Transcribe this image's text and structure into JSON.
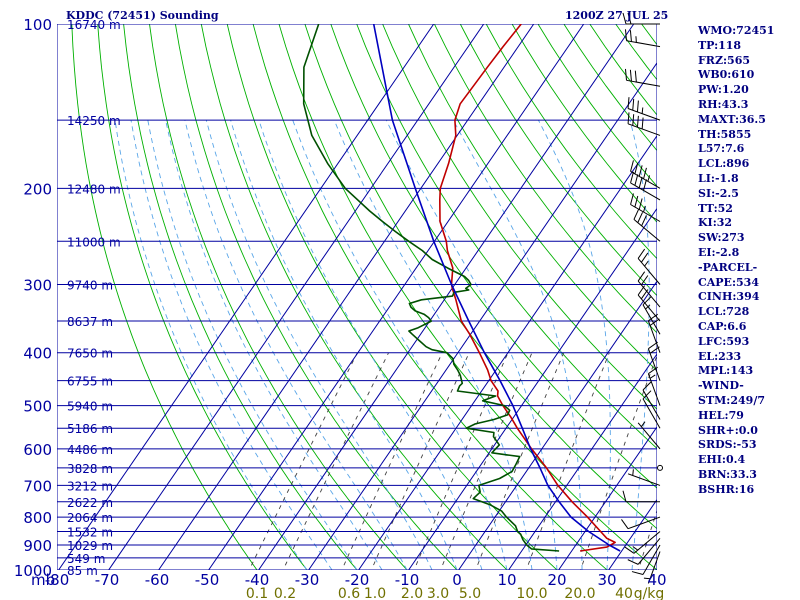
{
  "title_left": "KDDC (72451) Sounding",
  "title_right": "1200Z 27 JUL 25",
  "colors": {
    "background": "#ffffff",
    "grid": "#0000a0",
    "dry_adiabat": "#00b000",
    "moist_adiabat": "#5aa6e8",
    "mixing_ratio": "#404040",
    "temperature": "#c00000",
    "dewpoint": "#005000",
    "parcel": "#0000c0",
    "wind": "#000000",
    "text": "#000080",
    "mixing_label": "#707000"
  },
  "chart_data": {
    "type": "skew-t",
    "title": "KDDC (72451) Sounding",
    "subtitle": "1200Z 27 JUL 25",
    "pressure_axis": {
      "unit": "mb",
      "ticks": [
        100,
        200,
        300,
        400,
        500,
        600,
        700,
        800,
        900,
        1000
      ],
      "range": [
        1000,
        100
      ],
      "scale": "log"
    },
    "temperature_axis": {
      "ticks": [
        -80,
        -70,
        -60,
        -50,
        -40,
        -30,
        -20,
        -10,
        0,
        10,
        20,
        30,
        40
      ],
      "range": [
        -80,
        40
      ]
    },
    "height_labels": [
      {
        "p": 100,
        "label": "16740 m"
      },
      {
        "p": 150,
        "label": "14250 m"
      },
      {
        "p": 200,
        "label": "12480 m"
      },
      {
        "p": 250,
        "label": "11000 m"
      },
      {
        "p": 300,
        "label": "9740 m"
      },
      {
        "p": 350,
        "label": "8637 m"
      },
      {
        "p": 400,
        "label": "7650 m"
      },
      {
        "p": 450,
        "label": "6755 m"
      },
      {
        "p": 500,
        "label": "5940 m"
      },
      {
        "p": 550,
        "label": "5186 m"
      },
      {
        "p": 600,
        "label": "4486 m"
      },
      {
        "p": 650,
        "label": "3828 m"
      },
      {
        "p": 700,
        "label": "3212 m"
      },
      {
        "p": 750,
        "label": "2622 m"
      },
      {
        "p": 800,
        "label": "2064 m"
      },
      {
        "p": 850,
        "label": "1532 m"
      },
      {
        "p": 900,
        "label": "1029 m"
      },
      {
        "p": 950,
        "label": "549 m"
      },
      {
        "p": 1000,
        "label": "85 m"
      }
    ],
    "mixing_ratio_labels": [
      "0.1",
      "0.2",
      "0.6",
      "1.0",
      "2.0",
      "3.0",
      "5.0",
      "10.0",
      "20.0",
      "40",
      "g/kg"
    ],
    "mixing_ratio_values": [
      0.1,
      0.2,
      0.6,
      1.0,
      2.0,
      3.0,
      5.0,
      10.0,
      20.0,
      40
    ],
    "series": [
      {
        "name": "temperature",
        "p": [
          923,
          908,
          890,
          875,
          850,
          800,
          750,
          700,
          650,
          600,
          550,
          525,
          500,
          480,
          470,
          450,
          430,
          400,
          370,
          350,
          320,
          305,
          300,
          280,
          260,
          250,
          230,
          210,
          200,
          180,
          160,
          150,
          140,
          130,
          120,
          110,
          100
        ],
        "t": [
          22.0,
          26.8,
          27.8,
          25.6,
          23.4,
          18.8,
          13.6,
          8.5,
          3.8,
          -1.8,
          -7.5,
          -10.3,
          -13.5,
          -15.9,
          -16.5,
          -19.3,
          -21.5,
          -25.5,
          -30.0,
          -33.5,
          -37.5,
          -39.8,
          -40.5,
          -42.5,
          -46.0,
          -47.5,
          -51.5,
          -54.5,
          -56.0,
          -57.8,
          -60.2,
          -62.5,
          -63.7,
          -63.5,
          -63.3,
          -63.0,
          -62.5
        ]
      },
      {
        "name": "dewpoint",
        "p": [
          923,
          915,
          900,
          880,
          860,
          850,
          830,
          800,
          780,
          760,
          740,
          720,
          700,
          680,
          660,
          640,
          620,
          610,
          590,
          570,
          560,
          550,
          540,
          530,
          520,
          510,
          500,
          490,
          480,
          470,
          460,
          455,
          450,
          440,
          430,
          420,
          410,
          400,
          395,
          390,
          380,
          370,
          365,
          360,
          350,
          345,
          340,
          335,
          330,
          325,
          320,
          315,
          310,
          307,
          305,
          300,
          295,
          290,
          280,
          270,
          260,
          250,
          240,
          230,
          220,
          200,
          180,
          160,
          140,
          120,
          100
        ],
        "t": [
          17.8,
          12.0,
          10.5,
          9.0,
          7.8,
          6.8,
          5.6,
          2.6,
          0.8,
          -2.3,
          -6.6,
          -6.1,
          -7.3,
          -4.1,
          -2.6,
          -2.8,
          -3.1,
          -9.2,
          -8.8,
          -11.1,
          -11.6,
          -17.7,
          -16.5,
          -13.4,
          -11.3,
          -11.5,
          -13.2,
          -18.2,
          -16.3,
          -24.6,
          -24.9,
          -24.7,
          -25.2,
          -26.2,
          -27.5,
          -29.0,
          -30.0,
          -32.0,
          -35.4,
          -37.0,
          -39.2,
          -41.5,
          -42.6,
          -41.2,
          -39.5,
          -40.5,
          -41.9,
          -44.2,
          -45.5,
          -46.3,
          -44.4,
          -38.7,
          -38.9,
          -36.3,
          -37.1,
          -36.6,
          -37.6,
          -39.0,
          -43.5,
          -47.8,
          -51.0,
          -55.0,
          -59.0,
          -63.0,
          -67.0,
          -75.0,
          -82.0,
          -89.0,
          -95.0,
          -100.0,
          -103.0
        ]
      },
      {
        "name": "parcel",
        "p": [
          923,
          900,
          850,
          800,
          750,
          700,
          650,
          600,
          550,
          500,
          450,
          400,
          350,
          300,
          250,
          200,
          150,
          100
        ],
        "t": [
          30.0,
          27.0,
          21.0,
          15.5,
          11.0,
          6.5,
          2.5,
          -2.0,
          -6.5,
          -11.5,
          -17.5,
          -24.5,
          -32.0,
          -40.5,
          -50.0,
          -61.0,
          -75.0,
          -92.0
        ]
      }
    ],
    "wind_barbs": [
      {
        "p": 925,
        "dir": 200,
        "kt": 5
      },
      {
        "p": 900,
        "dir": 210,
        "kt": 10
      },
      {
        "p": 875,
        "dir": 220,
        "kt": 12
      },
      {
        "p": 850,
        "dir": 230,
        "kt": 15
      },
      {
        "p": 800,
        "dir": 250,
        "kt": 10
      },
      {
        "p": 750,
        "dir": 270,
        "kt": 8
      },
      {
        "p": 700,
        "dir": 290,
        "kt": 5
      },
      {
        "p": 650,
        "dir": 0,
        "kt": 0
      },
      {
        "p": 600,
        "dir": 320,
        "kt": 5
      },
      {
        "p": 550,
        "dir": 330,
        "kt": 10
      },
      {
        "p": 530,
        "dir": 330,
        "kt": 12
      },
      {
        "p": 500,
        "dir": 340,
        "kt": 15
      },
      {
        "p": 450,
        "dir": 340,
        "kt": 20
      },
      {
        "p": 400,
        "dir": 340,
        "kt": 20
      },
      {
        "p": 370,
        "dir": 330,
        "kt": 15
      },
      {
        "p": 350,
        "dir": 320,
        "kt": 20
      },
      {
        "p": 330,
        "dir": 320,
        "kt": 20
      },
      {
        "p": 300,
        "dir": 320,
        "kt": 25
      },
      {
        "p": 250,
        "dir": 310,
        "kt": 30
      },
      {
        "p": 230,
        "dir": 300,
        "kt": 35
      },
      {
        "p": 210,
        "dir": 300,
        "kt": 40
      },
      {
        "p": 200,
        "dir": 300,
        "kt": 45
      },
      {
        "p": 160,
        "dir": 290,
        "kt": 40
      },
      {
        "p": 150,
        "dir": 290,
        "kt": 35
      },
      {
        "p": 130,
        "dir": 280,
        "kt": 30
      },
      {
        "p": 110,
        "dir": 280,
        "kt": 25
      },
      {
        "p": 100,
        "dir": 270,
        "kt": 20
      }
    ]
  },
  "indices": [
    "WMO:72451",
    "TP:118",
    "FRZ:565",
    "WB0:610",
    "PW:1.20",
    "RH:43.3",
    "MAXT:36.5",
    "TH:5855",
    "L57:7.6",
    "LCL:896",
    "LI:-1.8",
    "SI:-2.5",
    "TT:52",
    "KI:32",
    "SW:273",
    "EI:-2.8",
    "-PARCEL-",
    "CAPE:534",
    "CINH:394",
    "LCL:728",
    "CAP:6.6",
    "LFC:593",
    "EL:233",
    "MPL:143",
    "-WIND-",
    "STM:249/7",
    "HEL:79",
    "SHR+:0.0",
    "SRDS:-53",
    "EHI:0.4",
    "BRN:33.3",
    "BSHR:16"
  ]
}
